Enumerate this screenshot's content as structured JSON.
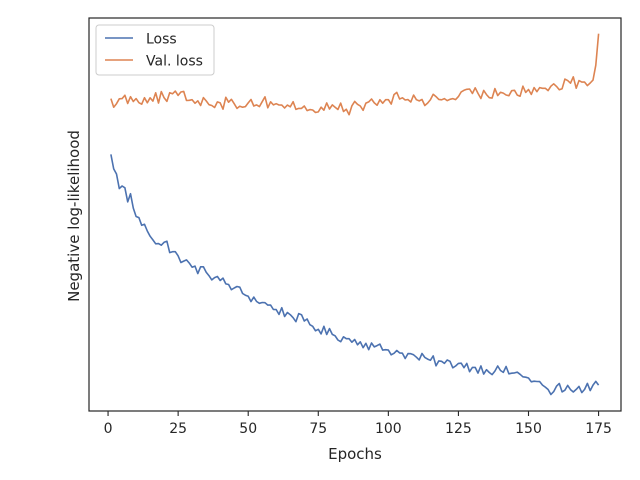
{
  "chart_data": {
    "type": "line",
    "title": "",
    "xlabel": "Epochs",
    "ylabel": "Negative log-likelihood",
    "xlim": [
      -6.8,
      183
    ],
    "ylim": [
      0,
      100
    ],
    "x_ticks": [
      0,
      25,
      50,
      75,
      100,
      125,
      150,
      175
    ],
    "x_tick_labels": [
      "0",
      "25",
      "50",
      "75",
      "100",
      "125",
      "150",
      "175"
    ],
    "y_ticks_shown": false,
    "grid": false,
    "legend": {
      "position": "upper-left"
    },
    "series": [
      {
        "name": "Loss",
        "color": "#4c72b0",
        "x_start": 1,
        "x_end": 175,
        "anchors": [
          [
            1,
            65.3
          ],
          [
            2,
            61.6
          ],
          [
            3,
            60.3
          ],
          [
            4,
            56.6
          ],
          [
            6,
            56.8
          ],
          [
            7,
            53.2
          ],
          [
            8,
            55.3
          ],
          [
            10,
            49.5
          ],
          [
            14,
            45.8
          ],
          [
            18,
            42.6
          ],
          [
            21,
            43.2
          ],
          [
            22,
            40.3
          ],
          [
            25,
            39.5
          ],
          [
            30,
            36.6
          ],
          [
            35,
            35.3
          ],
          [
            40,
            33.2
          ],
          [
            45,
            31.3
          ],
          [
            50,
            29.2
          ],
          [
            55,
            27.6
          ],
          [
            60,
            25.8
          ],
          [
            65,
            24.5
          ],
          [
            70,
            22.9
          ],
          [
            75,
            20.8
          ],
          [
            80,
            19.5
          ],
          [
            85,
            18.4
          ],
          [
            90,
            17.6
          ],
          [
            95,
            16.3
          ],
          [
            100,
            15.5
          ],
          [
            105,
            14.7
          ],
          [
            110,
            13.7
          ],
          [
            115,
            12.9
          ],
          [
            120,
            12.1
          ],
          [
            125,
            12.1
          ],
          [
            130,
            11.1
          ],
          [
            135,
            10.5
          ],
          [
            140,
            10.3
          ],
          [
            145,
            9.7
          ],
          [
            148,
            8.7
          ],
          [
            150,
            8.4
          ],
          [
            155,
            6.6
          ],
          [
            158,
            4.2
          ],
          [
            160,
            6.3
          ],
          [
            163,
            5.3
          ],
          [
            167,
            5.5
          ],
          [
            170,
            5.5
          ],
          [
            173,
            6.6
          ],
          [
            175,
            6.6
          ]
        ],
        "noise": 1.3
      },
      {
        "name": "Val. loss",
        "color": "#dd8452",
        "x_start": 1,
        "x_end": 175,
        "anchors": [
          [
            1,
            79.5
          ],
          [
            3,
            78.2
          ],
          [
            5,
            79.5
          ],
          [
            10,
            79.5
          ],
          [
            15,
            79.7
          ],
          [
            20,
            79.7
          ],
          [
            25,
            80.3
          ],
          [
            30,
            79.2
          ],
          [
            35,
            78.9
          ],
          [
            40,
            78.4
          ],
          [
            45,
            78.2
          ],
          [
            50,
            78.4
          ],
          [
            55,
            78.7
          ],
          [
            60,
            78.2
          ],
          [
            65,
            77.4
          ],
          [
            70,
            77.6
          ],
          [
            73,
            76.6
          ],
          [
            75,
            76.1
          ],
          [
            80,
            77.9
          ],
          [
            85,
            76.8
          ],
          [
            90,
            77.6
          ],
          [
            95,
            78.4
          ],
          [
            100,
            79.2
          ],
          [
            105,
            79.7
          ],
          [
            110,
            79.2
          ],
          [
            115,
            79.2
          ],
          [
            120,
            79.5
          ],
          [
            125,
            80.0
          ],
          [
            130,
            80.8
          ],
          [
            135,
            80.5
          ],
          [
            140,
            81.1
          ],
          [
            145,
            81.6
          ],
          [
            150,
            81.8
          ],
          [
            155,
            82.1
          ],
          [
            160,
            82.6
          ],
          [
            165,
            83.4
          ],
          [
            170,
            83.7
          ],
          [
            173,
            84.2
          ],
          [
            174,
            88.0
          ],
          [
            175,
            96.0
          ]
        ],
        "noise": 1.6
      }
    ]
  }
}
